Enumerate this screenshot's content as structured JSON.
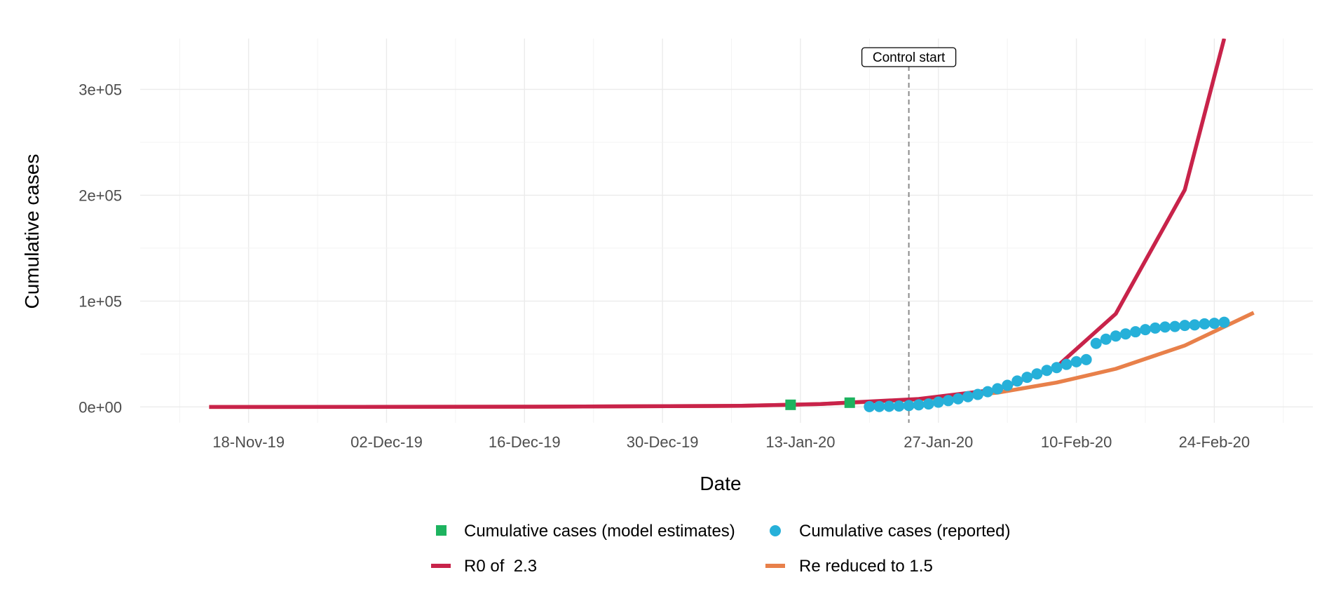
{
  "chart_data": {
    "type": "line",
    "xlabel": "Date",
    "ylabel": "Cumulative cases",
    "x_range": [
      "2019-11-07",
      "2020-03-05"
    ],
    "ylim": [
      -15000,
      348000
    ],
    "x_ticks": [
      {
        "date": "2019-11-18",
        "label": "18-Nov-19"
      },
      {
        "date": "2019-12-02",
        "label": "02-Dec-19"
      },
      {
        "date": "2019-12-16",
        "label": "16-Dec-19"
      },
      {
        "date": "2019-12-30",
        "label": "30-Dec-19"
      },
      {
        "date": "2020-01-13",
        "label": "13-Jan-20"
      },
      {
        "date": "2020-01-27",
        "label": "27-Jan-20"
      },
      {
        "date": "2020-02-10",
        "label": "10-Feb-20"
      },
      {
        "date": "2020-02-24",
        "label": "24-Feb-20"
      }
    ],
    "y_ticks": [
      {
        "value": 0,
        "label": "0e+00"
      },
      {
        "value": 100000,
        "label": "1e+05"
      },
      {
        "value": 200000,
        "label": "2e+05"
      },
      {
        "value": 300000,
        "label": "3e+05"
      }
    ],
    "grid": true,
    "legend_position": "bottom",
    "annotation": {
      "label": "Control start",
      "x": "2020-01-24",
      "style": "dashed vertical line"
    },
    "series": [
      {
        "name": "Cumulative cases (model estimates)",
        "kind": "points",
        "marker": "square",
        "color": "#1db35f",
        "points": [
          {
            "x": "2020-01-12",
            "y": 2000
          },
          {
            "x": "2020-01-18",
            "y": 4000
          }
        ]
      },
      {
        "name": "Cumulative cases (reported)",
        "kind": "points",
        "marker": "circle",
        "color": "#26b0d9",
        "points": [
          {
            "x": "2020-01-20",
            "y": 300
          },
          {
            "x": "2020-01-21",
            "y": 440
          },
          {
            "x": "2020-01-22",
            "y": 570
          },
          {
            "x": "2020-01-23",
            "y": 830
          },
          {
            "x": "2020-01-24",
            "y": 1300
          },
          {
            "x": "2020-01-25",
            "y": 2000
          },
          {
            "x": "2020-01-26",
            "y": 2800
          },
          {
            "x": "2020-01-27",
            "y": 4500
          },
          {
            "x": "2020-01-28",
            "y": 6000
          },
          {
            "x": "2020-01-29",
            "y": 7700
          },
          {
            "x": "2020-01-30",
            "y": 9700
          },
          {
            "x": "2020-01-31",
            "y": 11800
          },
          {
            "x": "2020-02-01",
            "y": 14400
          },
          {
            "x": "2020-02-02",
            "y": 17200
          },
          {
            "x": "2020-02-03",
            "y": 20400
          },
          {
            "x": "2020-02-04",
            "y": 24500
          },
          {
            "x": "2020-02-05",
            "y": 28000
          },
          {
            "x": "2020-02-06",
            "y": 31200
          },
          {
            "x": "2020-02-07",
            "y": 34500
          },
          {
            "x": "2020-02-08",
            "y": 37200
          },
          {
            "x": "2020-02-09",
            "y": 40200
          },
          {
            "x": "2020-02-10",
            "y": 42700
          },
          {
            "x": "2020-02-11",
            "y": 44700
          },
          {
            "x": "2020-02-12",
            "y": 60000
          },
          {
            "x": "2020-02-13",
            "y": 64000
          },
          {
            "x": "2020-02-14",
            "y": 67000
          },
          {
            "x": "2020-02-15",
            "y": 69000
          },
          {
            "x": "2020-02-16",
            "y": 71000
          },
          {
            "x": "2020-02-17",
            "y": 73000
          },
          {
            "x": "2020-02-18",
            "y": 74500
          },
          {
            "x": "2020-02-19",
            "y": 75500
          },
          {
            "x": "2020-02-20",
            "y": 76000
          },
          {
            "x": "2020-02-21",
            "y": 77000
          },
          {
            "x": "2020-02-22",
            "y": 77500
          },
          {
            "x": "2020-02-23",
            "y": 78500
          },
          {
            "x": "2020-02-24",
            "y": 79000
          },
          {
            "x": "2020-02-25",
            "y": 80000
          }
        ]
      },
      {
        "name": "R0 of  2.3",
        "kind": "line",
        "color": "#c8234a",
        "points": [
          {
            "x": "2019-11-14",
            "y": 0
          },
          {
            "x": "2019-12-20",
            "y": 300
          },
          {
            "x": "2020-01-07",
            "y": 1000
          },
          {
            "x": "2020-01-15",
            "y": 2700
          },
          {
            "x": "2020-01-25",
            "y": 7500
          },
          {
            "x": "2020-02-02",
            "y": 16500
          },
          {
            "x": "2020-02-08",
            "y": 38000
          },
          {
            "x": "2020-02-14",
            "y": 88000
          },
          {
            "x": "2020-02-21",
            "y": 205000
          },
          {
            "x": "2020-02-25",
            "y": 348000
          }
        ]
      },
      {
        "name": "Re reduced to 1.5",
        "kind": "line",
        "color": "#e8804a",
        "points": [
          {
            "x": "2019-11-14",
            "y": 0
          },
          {
            "x": "2019-12-20",
            "y": 300
          },
          {
            "x": "2020-01-07",
            "y": 1000
          },
          {
            "x": "2020-01-15",
            "y": 2700
          },
          {
            "x": "2020-01-25",
            "y": 7000
          },
          {
            "x": "2020-02-02",
            "y": 13500
          },
          {
            "x": "2020-02-08",
            "y": 23000
          },
          {
            "x": "2020-02-14",
            "y": 36000
          },
          {
            "x": "2020-02-21",
            "y": 58000
          },
          {
            "x": "2020-02-28",
            "y": 89000
          }
        ]
      }
    ]
  }
}
